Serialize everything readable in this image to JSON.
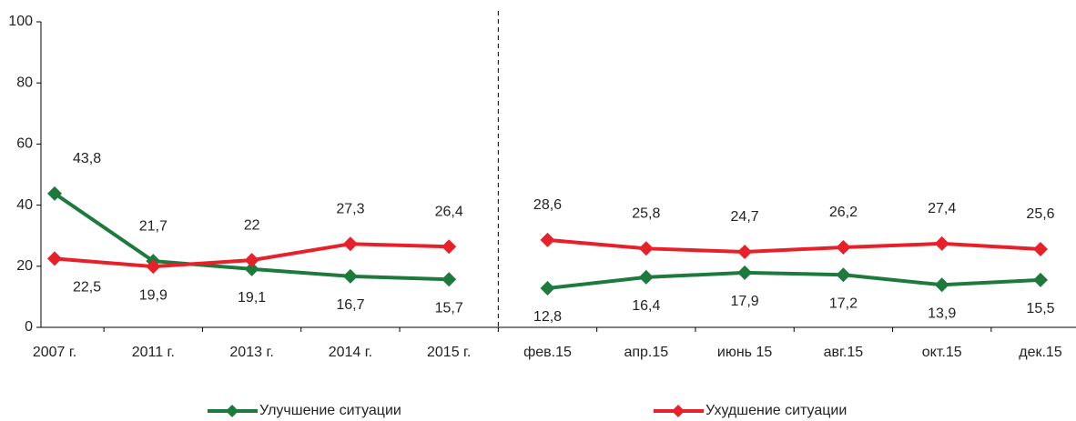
{
  "chart_data": {
    "type": "line",
    "categories": [
      "2007 г.",
      "2011 г.",
      "2013 г.",
      "2014 г.",
      "2015 г.",
      "фев.15",
      "апр.15",
      "июнь 15",
      "авг.15",
      "окт.15",
      "дек.15"
    ],
    "series": [
      {
        "name": "Улучшение ситуации",
        "color": "#1e7a3c",
        "values": [
          43.8,
          21.7,
          19.1,
          16.7,
          15.7,
          12.8,
          16.4,
          17.9,
          17.2,
          13.9,
          15.5
        ],
        "value_labels": [
          "43,8",
          "21,7",
          "19,1",
          "16,7",
          "15,7",
          "12,8",
          "16,4",
          "17,9",
          "17,2",
          "13,9",
          "15,5"
        ]
      },
      {
        "name": "Ухудшение ситуации",
        "color": "#e8202a",
        "values": [
          22.5,
          19.9,
          22,
          27.3,
          26.4,
          28.6,
          25.8,
          24.7,
          26.2,
          27.4,
          25.6
        ],
        "value_labels": [
          "22,5",
          "19,9",
          "22",
          "27,3",
          "26,4",
          "28,6",
          "25,8",
          "24,7",
          "26,2",
          "27,4",
          "25,6"
        ]
      }
    ],
    "ylim": [
      0,
      100
    ],
    "yticks": [
      0,
      20,
      40,
      60,
      80,
      100
    ],
    "divider_after_index": 4,
    "legend": "bottom"
  }
}
